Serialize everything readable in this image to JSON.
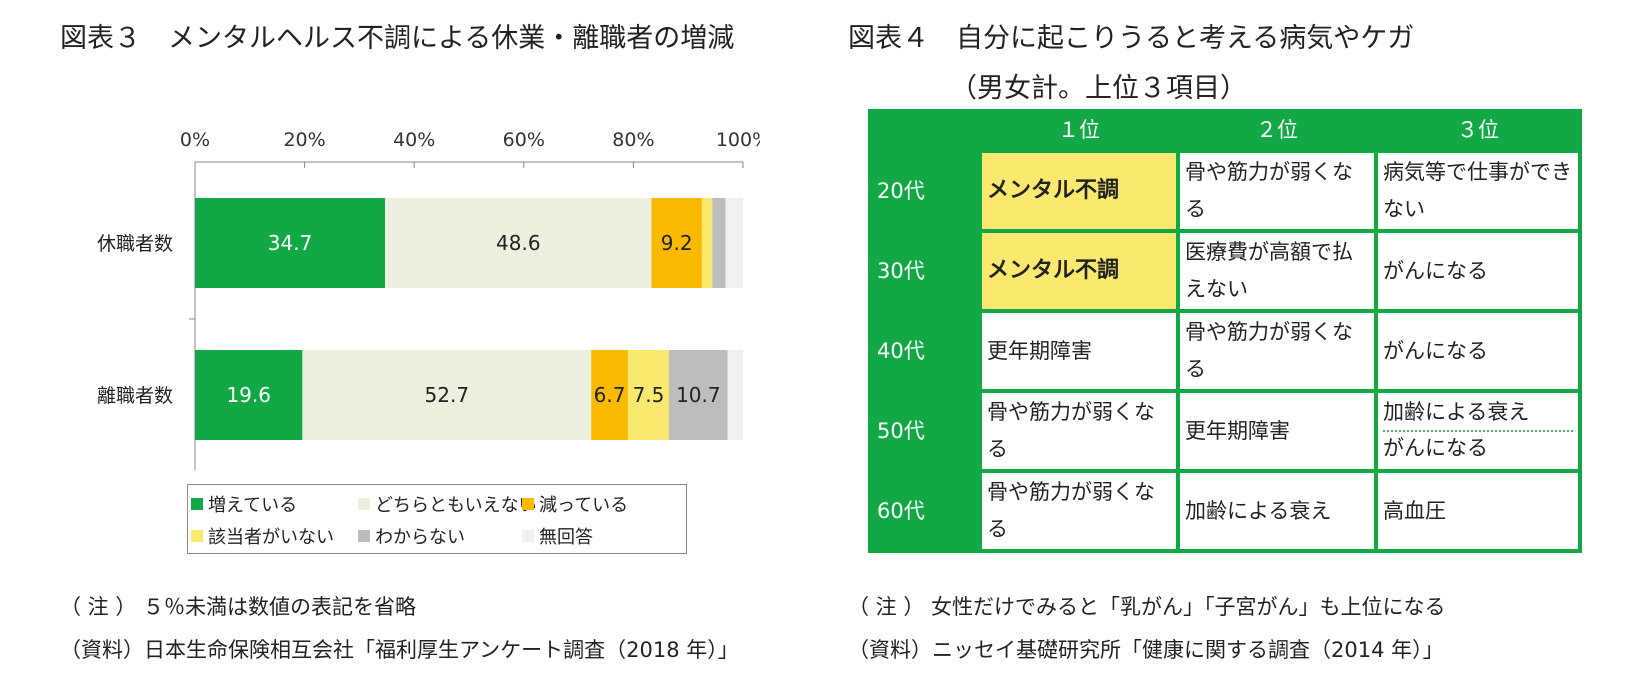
{
  "fig3": {
    "title": "図表３　メンタルヘルス不調による休業・離職者の増減",
    "note": "（ 注 ）  ５％未満は数値の表記を省略",
    "source": "（資料）日本生命保険相互会社「福利厚生アンケート調査（2018 年）」"
  },
  "fig4": {
    "title": "図表４　自分に起こりうると考える病気やケガ",
    "subtitle": "（男女計。上位３項目）",
    "note": "（ 注 ）  女性だけでみると「乳がん」「子宮がん」も上位になる",
    "source": "（資料）ニッセイ基礎研究所「健康に関する調査（2014 年）」",
    "header": [
      "",
      "１位",
      "２位",
      "３位"
    ],
    "rows": [
      {
        "age": "20代",
        "r1": "メンタル不調",
        "r2": "骨や筋力が弱くなる",
        "r3": "病気等で仕事ができない",
        "highlight": true
      },
      {
        "age": "30代",
        "r1": "メンタル不調",
        "r2": "医療費が高額で払えない",
        "r3": "がんになる",
        "highlight": true
      },
      {
        "age": "40代",
        "r1": "更年期障害",
        "r2": "骨や筋力が弱くなる",
        "r3": "がんになる",
        "highlight": false
      },
      {
        "age": "50代",
        "r1": "骨や筋力が弱くなる",
        "r2": "更年期障害",
        "r3a": "加齢による衰え",
        "r3b": "がんになる",
        "highlight": false
      },
      {
        "age": "60代",
        "r1": "骨や筋力が弱くなる",
        "r2": "加齢による衰え",
        "r3": "高血圧",
        "highlight": false
      }
    ]
  },
  "chart_data": {
    "type": "bar",
    "orientation": "horizontal",
    "stacked": true,
    "xlim": [
      0,
      100
    ],
    "xticks": [
      "0%",
      "20%",
      "40%",
      "60%",
      "80%",
      "100%"
    ],
    "axis_position": "top",
    "categories": [
      "休職者数",
      "離職者数"
    ],
    "series": [
      {
        "name": "増えている",
        "values": [
          34.7,
          19.6
        ],
        "color": "#13a846",
        "labels": [
          "34.7",
          "19.6"
        ],
        "label_color": "#ffffff"
      },
      {
        "name": "どちらともいえない",
        "values": [
          48.6,
          52.7
        ],
        "color": "#edf0df",
        "labels": [
          "48.6",
          "52.7"
        ],
        "label_color": "#222222"
      },
      {
        "name": "減っている",
        "values": [
          9.2,
          6.7
        ],
        "color": "#fbba00",
        "labels": [
          "9.2",
          "6.7"
        ],
        "label_color": "#222222"
      },
      {
        "name": "該当者がいない",
        "values": [
          1.9,
          7.5
        ],
        "color": "#fbe96f",
        "labels": [
          "",
          "7.5"
        ],
        "label_color": "#222222"
      },
      {
        "name": "わからない",
        "values": [
          2.4,
          10.7
        ],
        "color": "#bdbdbd",
        "labels": [
          "",
          "10.7"
        ],
        "label_color": "#222222"
      },
      {
        "name": "無回答",
        "values": [
          3.2,
          2.8
        ],
        "color": "#f0f0f0",
        "labels": [
          "",
          ""
        ],
        "label_color": "#222222"
      }
    ],
    "legend_position": "bottom"
  }
}
